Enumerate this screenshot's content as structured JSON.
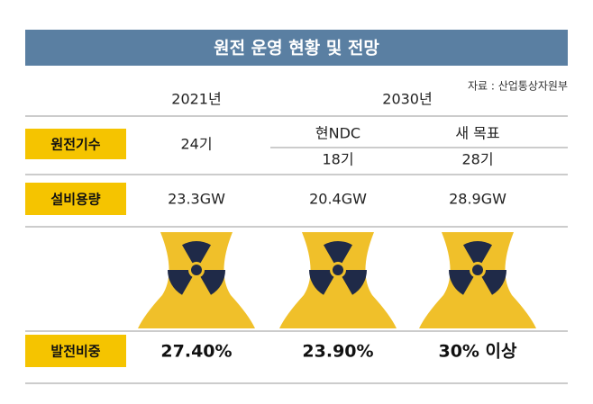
{
  "header": {
    "title": "원전 운영 현황 및 전망",
    "source": "자료 : 산업통상자원부"
  },
  "years": [
    "2021년",
    "2030년"
  ],
  "scenarios": [
    "현NDC",
    "새 목표"
  ],
  "rows": [
    {
      "label": "원전기수",
      "values": [
        "24기",
        "18기",
        "28기"
      ]
    },
    {
      "label": "설비용량",
      "values": [
        "23.3GW",
        "20.4GW",
        "28.9GW"
      ]
    },
    {
      "label": "발전비중",
      "values": [
        "27.40%",
        "23.90%",
        "30% 이상"
      ]
    }
  ]
}
